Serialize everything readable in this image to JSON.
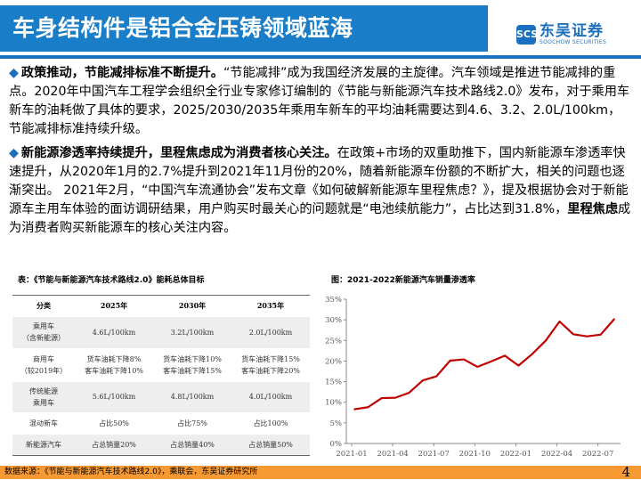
{
  "header": {
    "title": "车身结构件是铝合金压铸领域蓝海",
    "logo_cn": "东吴证券",
    "logo_en": "SOOCHOW SECURITIES",
    "logo_mark": "SCS"
  },
  "paragraphs": [
    {
      "bullet": "◆",
      "bold": "政策推动，节能减排标准不断提升。",
      "text": "“节能减排”成为我国经济发展的主旋律。汽车领域是推进节能减排的重点。2020年中国汽车工程学会组织全行业专家修订编制的《节能与新能源汽车技术路线2.0》发布，对于乘用车新车的油耗做了具体的要求，2025/2030/2035年乘用车新车的平均油耗需要达到4.6、3.2、2.0L/100km，节能减排标准持续升级。"
    },
    {
      "bullet": "◆",
      "bold": "新能源渗透率持续提升，里程焦虑成为消费者核心关注。",
      "text": "在政策+市场的双重助推下，国内新能源车渗透率快速提升，从2020年1月的2.7%提升到2021年11月份的20%，随着新能源车份额的不断扩大，相关的问题也逐渐突出。 2021年2月，“中国汽车流通协会”发布文章《如何破解新能源车里程焦虑？》，提及根据协会对于新能源车主用车体验的面访调研结果，用户购买时最关心的问题就是“电池续航能力”，占比达到31.8%，",
      "bold2": "里程焦虑",
      "text2": "成为消费者购买新能源车的核心关注内容。"
    }
  ],
  "table": {
    "caption": "表：《节能与新能源汽车技术路线2.0》能耗总体目标",
    "headers": [
      "分类",
      "2025年",
      "2030年",
      "2035年"
    ],
    "rows": [
      [
        "乘用车\n（含新能源）",
        "4.6L/100km",
        "3.2L/100km",
        "2.0L/100km"
      ],
      [
        "商用车\n（较2019年）",
        "货车油耗下降8%\n客车油耗下降10%",
        "货车油耗下降10%\n客车油耗下降15%",
        "货车油耗下降15%\n客车油耗下降20%"
      ],
      [
        "传统能源\n乘用车",
        "5.6L/100km",
        "4.8L/100km",
        "4.0L/100km"
      ],
      [
        "混动新车",
        "占比50%",
        "占比75%",
        "占比100%"
      ],
      [
        "新能源汽车",
        "占总销量20%",
        "占总销量40%",
        "占总销量50%"
      ]
    ]
  },
  "chart_data": {
    "type": "line",
    "title": "图：2021-2022新能源汽车销量渗透率",
    "x": [
      "2021-01",
      "2021-02",
      "2021-03",
      "2021-04",
      "2021-05",
      "2021-06",
      "2021-07",
      "2021-08",
      "2021-09",
      "2021-10",
      "2021-11",
      "2021-12",
      "2022-01",
      "2022-02",
      "2022-03",
      "2022-04",
      "2022-05",
      "2022-06",
      "2022-07",
      "2022-08"
    ],
    "values": [
      8.3,
      8.8,
      11.0,
      11.1,
      12.3,
      15.3,
      16.3,
      20.1,
      20.4,
      18.6,
      19.9,
      21.3,
      18.9,
      21.7,
      25.0,
      29.6,
      26.5,
      26.0,
      26.4,
      30.2
    ],
    "xticks": [
      "2021-01",
      "2021-04",
      "2021-07",
      "2021-10",
      "2022-01",
      "2022-04",
      "2022-07"
    ],
    "yticks": [
      "0%",
      "5%",
      "10%",
      "15%",
      "20%",
      "25%",
      "30%",
      "35%"
    ],
    "ylim": [
      0,
      35
    ],
    "color": "#c00000"
  },
  "footer": {
    "source": "数据来源：《节能与新能源汽车技术路线2.0》，乘联会，东吴证券研究所",
    "page": "4"
  }
}
